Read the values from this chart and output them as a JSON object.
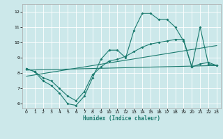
{
  "xlabel": "Humidex (Indice chaleur)",
  "bg_color": "#cce8ea",
  "line_color": "#1a7a6e",
  "grid_color": "#ffffff",
  "xlim": [
    -0.5,
    23.5
  ],
  "ylim": [
    5.7,
    12.5
  ],
  "yticks": [
    6,
    7,
    8,
    9,
    10,
    11,
    12
  ],
  "xticks": [
    0,
    1,
    2,
    3,
    4,
    5,
    6,
    7,
    8,
    9,
    10,
    11,
    12,
    13,
    14,
    15,
    16,
    17,
    18,
    19,
    20,
    21,
    22,
    23
  ],
  "curve1_x": [
    0,
    1,
    2,
    3,
    4,
    5,
    6,
    7,
    8,
    9,
    10,
    11,
    12,
    13,
    14,
    15,
    16,
    17,
    18,
    19,
    20,
    21,
    22,
    23
  ],
  "curve1_y": [
    8.3,
    8.1,
    7.5,
    7.2,
    6.7,
    6.0,
    5.9,
    6.5,
    7.7,
    8.9,
    9.5,
    9.5,
    9.0,
    10.8,
    11.9,
    11.9,
    11.5,
    11.5,
    11.0,
    10.1,
    8.4,
    11.0,
    8.6,
    8.5
  ],
  "curve2_x": [
    0,
    1,
    2,
    3,
    4,
    5,
    6,
    7,
    8,
    9,
    10,
    11,
    12,
    13,
    14,
    15,
    16,
    17,
    18,
    19,
    20,
    21,
    22,
    23
  ],
  "curve2_y": [
    8.3,
    8.1,
    7.7,
    7.5,
    7.0,
    6.5,
    6.2,
    6.8,
    7.9,
    8.4,
    8.8,
    8.9,
    9.1,
    9.4,
    9.7,
    9.9,
    10.0,
    10.1,
    10.2,
    10.2,
    8.4,
    8.6,
    8.7,
    8.5
  ],
  "trend1_x": [
    0,
    23
  ],
  "trend1_y": [
    8.2,
    8.5
  ],
  "trend2_x": [
    0,
    23
  ],
  "trend2_y": [
    7.8,
    9.8
  ]
}
